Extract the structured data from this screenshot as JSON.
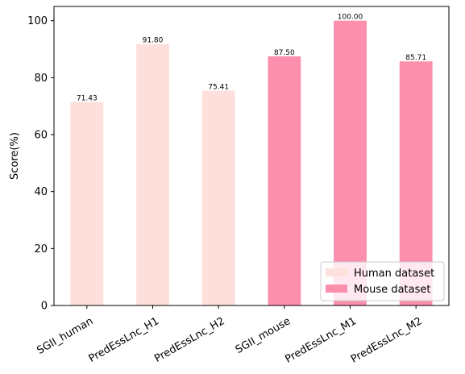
{
  "chart_data": {
    "type": "bar",
    "categories": [
      "SGII_human",
      "PredEssLnc_H1",
      "PredEssLnc_H2",
      "SGII_mouse",
      "PredEssLnc_M1",
      "PredEssLnc_M2"
    ],
    "values": [
      71.43,
      91.8,
      75.41,
      87.5,
      100.0,
      85.71
    ],
    "value_labels": [
      "71.43",
      "91.80",
      "75.41",
      "87.50",
      "100.00",
      "85.71"
    ],
    "bar_group": [
      0,
      0,
      0,
      1,
      1,
      1
    ],
    "series": [
      {
        "name": "Human dataset",
        "color": "#fde0db"
      },
      {
        "name": "Mouse dataset",
        "color": "#fc8eae"
      }
    ],
    "title": "",
    "xlabel": "",
    "ylabel": "Score(%)",
    "ylim": [
      0,
      105
    ],
    "yticks": [
      0,
      20,
      40,
      60,
      80,
      100
    ],
    "x_tick_rotation": "30 degrees",
    "grid": false,
    "legend_position": "lower-right"
  }
}
